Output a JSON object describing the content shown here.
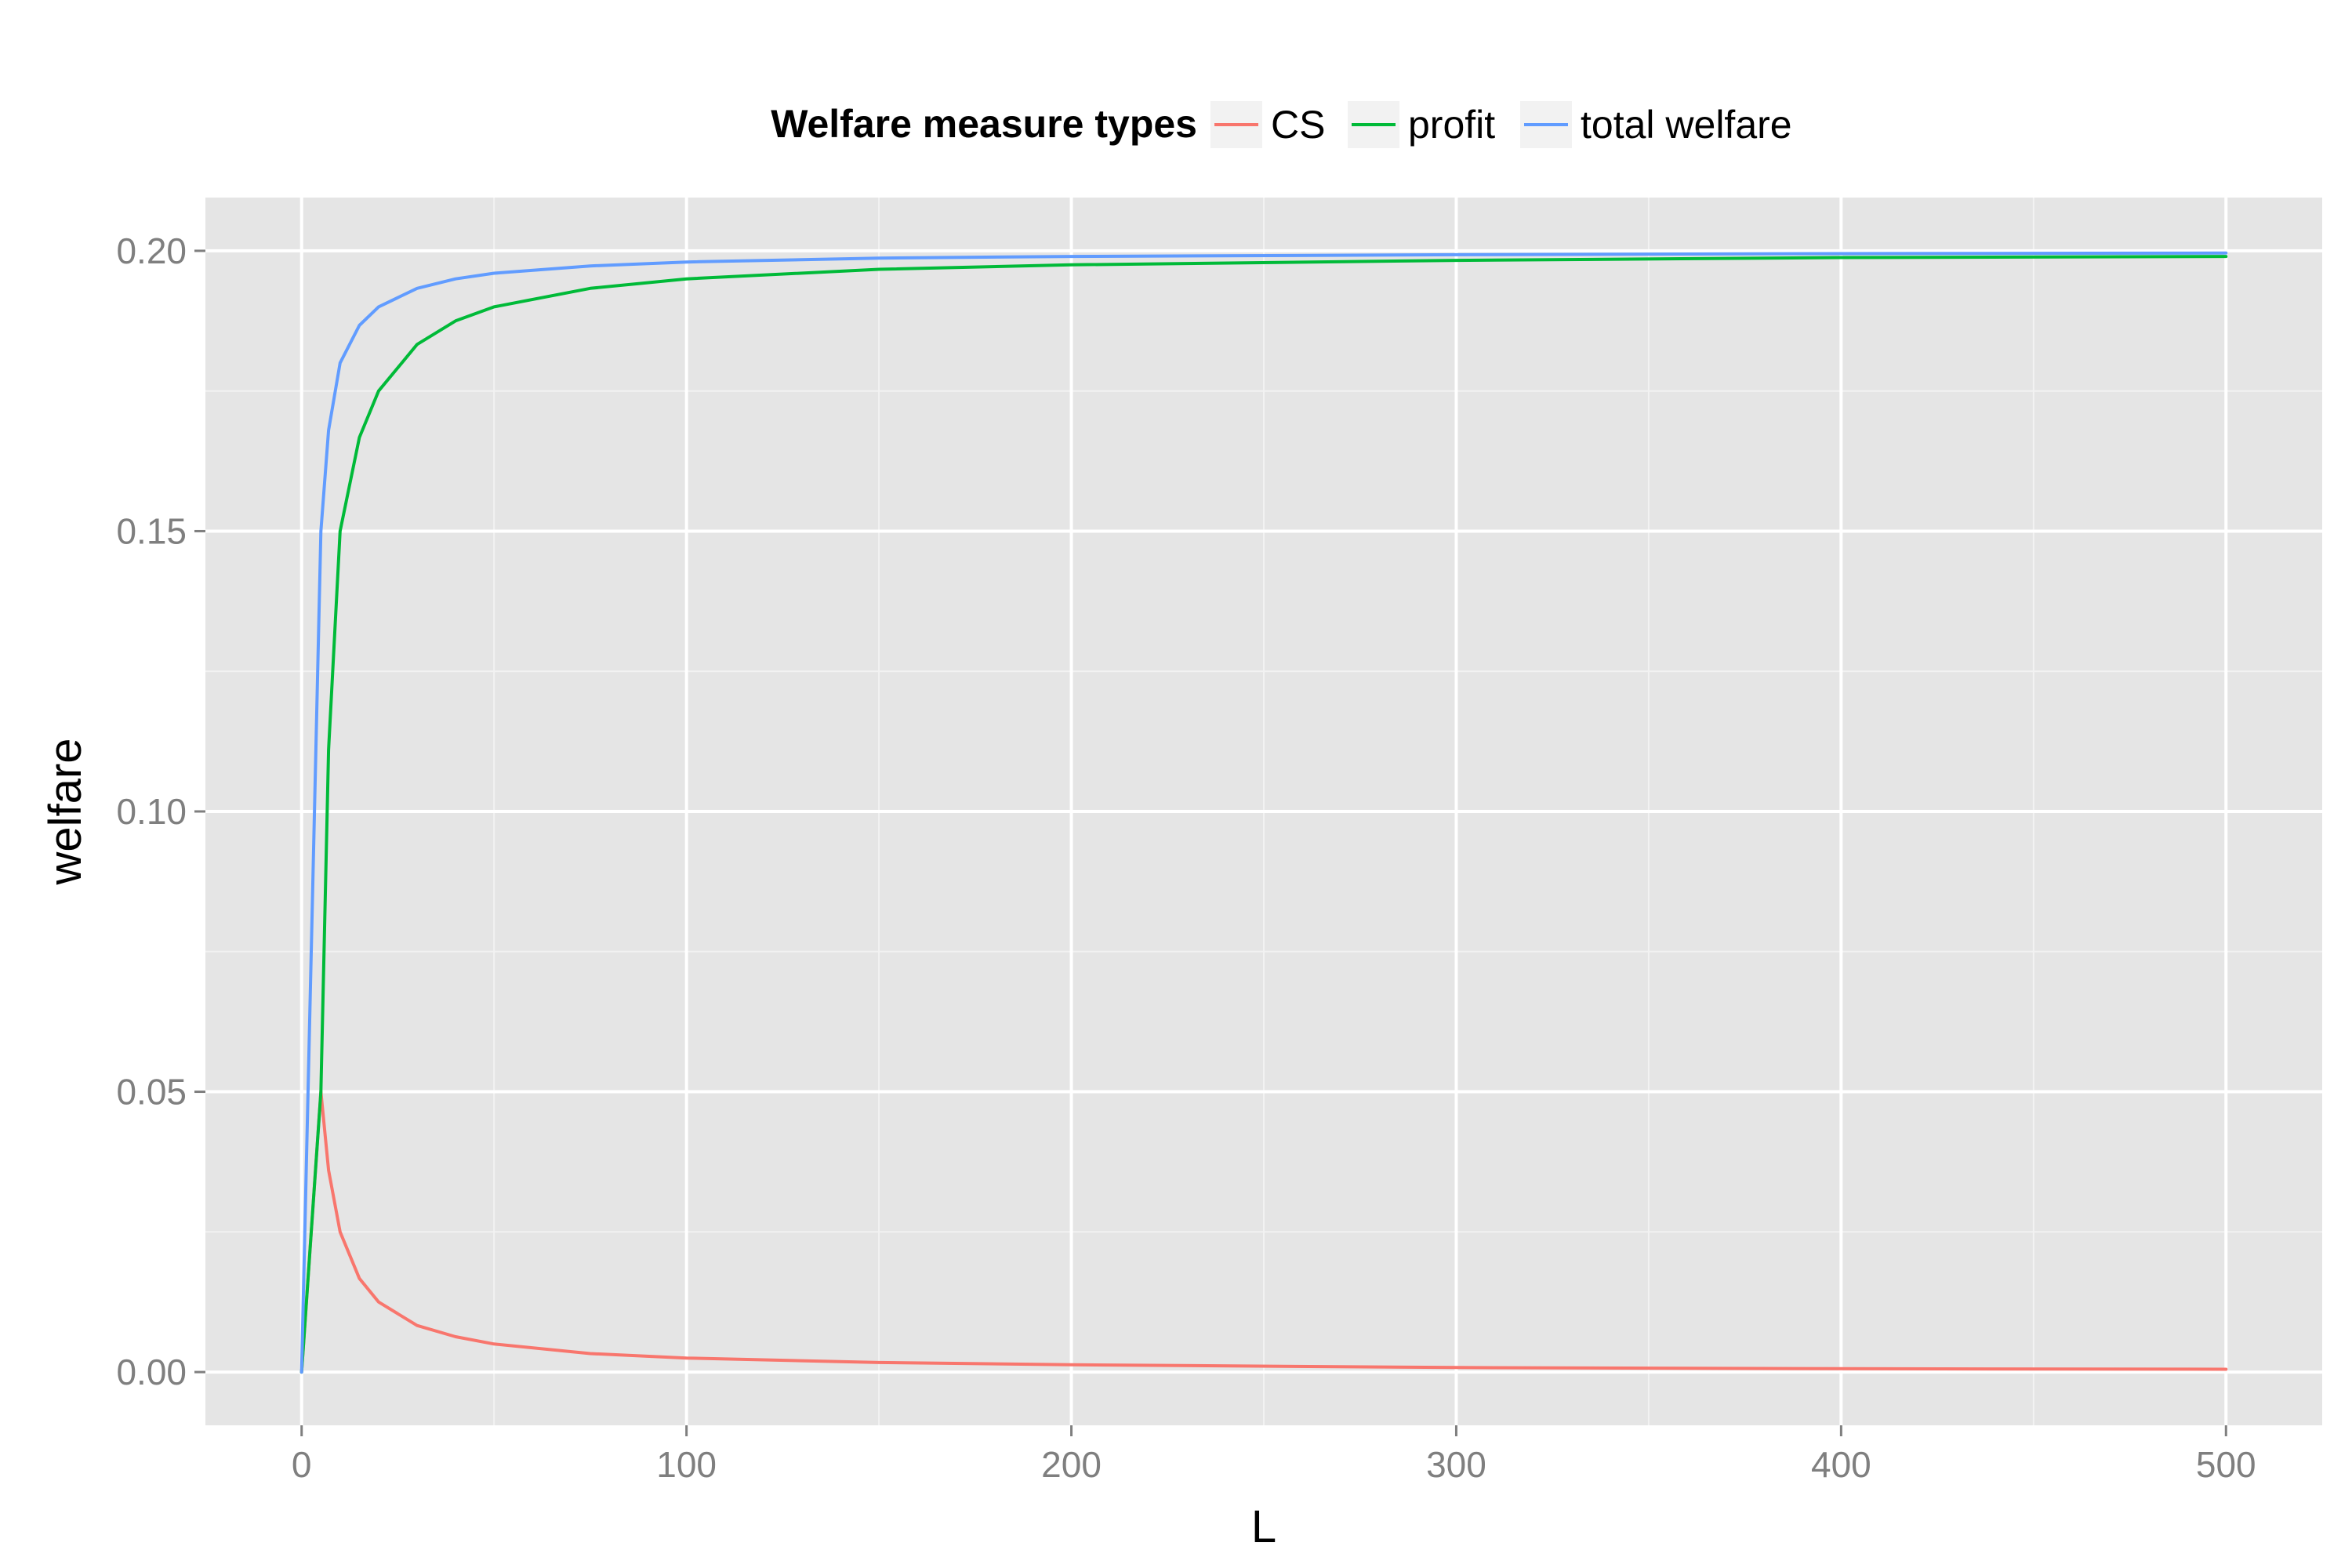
{
  "chart_data": {
    "type": "line",
    "title": "",
    "xlabel": "L",
    "ylabel": "welfare",
    "xlim": [
      -25,
      525
    ],
    "ylim": [
      -0.0095,
      0.2095
    ],
    "x_ticks": [
      0,
      100,
      200,
      300,
      400,
      500
    ],
    "x_tick_labels": [
      "0",
      "100",
      "200",
      "300",
      "400",
      "500"
    ],
    "y_ticks": [
      0.0,
      0.05,
      0.1,
      0.15,
      0.2
    ],
    "y_tick_labels": [
      "0.00",
      "0.05",
      "0.10",
      "0.15",
      "0.20"
    ],
    "grid": true,
    "panel_background": "#e5e5e5",
    "legend": {
      "title": "Welfare measure types",
      "position": "top"
    },
    "series": [
      {
        "name": "CS",
        "color": "#f8766d",
        "x": [
          0,
          5,
          7,
          10,
          15,
          20,
          30,
          40,
          50,
          75,
          100,
          150,
          200,
          300,
          400,
          500
        ],
        "values": [
          0.0,
          0.05,
          0.036,
          0.025,
          0.0167,
          0.0125,
          0.0083,
          0.0063,
          0.005,
          0.0033,
          0.0025,
          0.0017,
          0.0013,
          0.0008,
          0.0006,
          0.0005
        ]
      },
      {
        "name": "profit",
        "color": "#00ba38",
        "x": [
          0,
          5,
          7,
          10,
          15,
          20,
          30,
          40,
          50,
          75,
          100,
          150,
          200,
          300,
          400,
          500
        ],
        "values": [
          0.0,
          0.05,
          0.111,
          0.15,
          0.1667,
          0.175,
          0.1833,
          0.1875,
          0.19,
          0.1933,
          0.195,
          0.1967,
          0.1975,
          0.1983,
          0.1988,
          0.199
        ]
      },
      {
        "name": "total welfare",
        "color": "#619cff",
        "x": [
          0,
          5,
          7,
          10,
          15,
          20,
          30,
          40,
          50,
          75,
          100,
          150,
          200,
          300,
          400,
          500
        ],
        "values": [
          0.0,
          0.15,
          0.168,
          0.18,
          0.1867,
          0.19,
          0.1933,
          0.195,
          0.196,
          0.1973,
          0.198,
          0.1987,
          0.199,
          0.1993,
          0.1995,
          0.1996
        ]
      }
    ]
  }
}
